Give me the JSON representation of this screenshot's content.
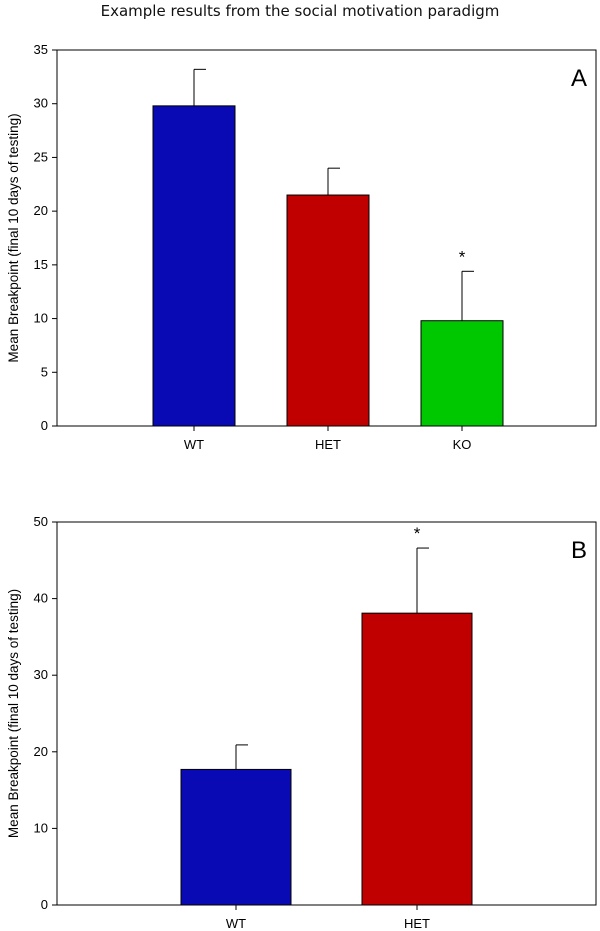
{
  "page_title": "Example results from the social motivation paradigm",
  "chart_data": [
    {
      "type": "bar",
      "panel_label": "A",
      "categories": [
        "WT",
        "HET",
        "KO"
      ],
      "values": [
        29.8,
        21.5,
        9.8
      ],
      "errors": [
        3.4,
        2.5,
        4.6
      ],
      "significance": [
        "",
        "",
        "*"
      ],
      "colors": [
        "#0a0ab4",
        "#c00000",
        "#00c800"
      ],
      "ylabel": "Mean Breakpoint (final 10 days of testing)",
      "xlabel": "",
      "ylim": [
        0,
        35
      ],
      "yticks": [
        0,
        5,
        10,
        15,
        20,
        25,
        30,
        35
      ]
    },
    {
      "type": "bar",
      "panel_label": "B",
      "categories": [
        "WT",
        "HET"
      ],
      "values": [
        17.7,
        38.1
      ],
      "errors": [
        3.2,
        8.5
      ],
      "significance": [
        "",
        "*"
      ],
      "colors": [
        "#0a0ab4",
        "#c00000"
      ],
      "ylabel": "Mean Breakpoint (final 10 days of testing)",
      "xlabel": "",
      "ylim": [
        0,
        50
      ],
      "yticks": [
        0,
        10,
        20,
        30,
        40,
        50
      ]
    }
  ]
}
